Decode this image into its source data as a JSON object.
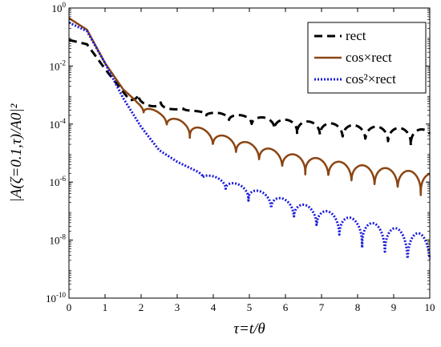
{
  "chart_data": {
    "type": "line",
    "title": "",
    "xlabel": "τ=t/θ",
    "ylabel": "|A(ζ=0.1,τ)/A0|²",
    "xlim": [
      0,
      10
    ],
    "ylim_log10": [
      -10,
      0
    ],
    "y_scale": "log",
    "x_ticks": [
      "0",
      "1",
      "2",
      "3",
      "4",
      "5",
      "6",
      "7",
      "8",
      "9",
      "10"
    ],
    "y_ticks": [
      "10-10",
      "10-8",
      "10-6",
      "10-4",
      "10-2",
      "100"
    ],
    "grid": false,
    "legend_position": "top-right",
    "series": [
      {
        "name": "rect",
        "color": "#000000",
        "style": "dashed",
        "floor_log10": [
          [
            0.0,
            -1.1
          ],
          [
            0.5,
            -1.25
          ],
          [
            1.0,
            -2.0
          ],
          [
            2.0,
            -3.0
          ],
          [
            4.0,
            -3.8
          ],
          [
            6.0,
            -4.3
          ],
          [
            8.0,
            -4.6
          ],
          [
            10.0,
            -4.8
          ]
        ],
        "peak_log10": [
          [
            0.0,
            -1.1
          ],
          [
            0.5,
            -1.25
          ],
          [
            1.0,
            -2.1
          ],
          [
            1.7,
            -3.2
          ],
          [
            2.5,
            -3.45
          ],
          [
            4.0,
            -3.6
          ],
          [
            6.0,
            -3.85
          ],
          [
            8.0,
            -4.05
          ],
          [
            10.0,
            -4.2
          ]
        ],
        "oscillation_start": 1.6,
        "oscillation_period": 0.63
      },
      {
        "name": "cos×rect",
        "color": "#8b4513",
        "style": "solid",
        "floor_log10": [
          [
            0.0,
            -0.35
          ],
          [
            0.5,
            -0.75
          ],
          [
            1.0,
            -1.9
          ],
          [
            1.5,
            -2.8
          ],
          [
            2.0,
            -3.6
          ],
          [
            3.0,
            -4.3
          ],
          [
            4.0,
            -4.8
          ],
          [
            6.0,
            -5.6
          ],
          [
            8.0,
            -6.1
          ],
          [
            10.0,
            -6.5
          ]
        ],
        "peak_log10": [
          [
            0.0,
            -0.35
          ],
          [
            0.5,
            -0.75
          ],
          [
            1.0,
            -1.9
          ],
          [
            1.5,
            -2.8
          ],
          [
            1.9,
            -3.25
          ],
          [
            2.5,
            -3.6
          ],
          [
            4.0,
            -4.3
          ],
          [
            6.0,
            -5.0
          ],
          [
            8.0,
            -5.4
          ],
          [
            10.0,
            -5.7
          ]
        ],
        "oscillation_start": 1.75,
        "oscillation_period": 0.64
      },
      {
        "name": "cos²×rect",
        "color": "#1a1adc",
        "style": "dotted",
        "floor_log10": [
          [
            0.0,
            -0.5
          ],
          [
            0.5,
            -0.8
          ],
          [
            1.0,
            -1.9
          ],
          [
            1.5,
            -3.1
          ],
          [
            2.0,
            -4.1
          ],
          [
            2.5,
            -4.9
          ],
          [
            3.0,
            -5.3
          ],
          [
            4.0,
            -6.1
          ],
          [
            6.0,
            -7.2
          ],
          [
            8.0,
            -8.2
          ],
          [
            10.0,
            -9.2
          ]
        ],
        "peak_log10": [
          [
            0.0,
            -0.5
          ],
          [
            0.5,
            -0.8
          ],
          [
            1.0,
            -1.9
          ],
          [
            1.5,
            -3.1
          ],
          [
            2.0,
            -4.1
          ],
          [
            2.5,
            -4.9
          ],
          [
            3.0,
            -5.3
          ],
          [
            3.5,
            -5.6
          ],
          [
            4.0,
            -5.8
          ],
          [
            6.0,
            -6.6
          ],
          [
            8.0,
            -7.3
          ],
          [
            10.0,
            -7.85
          ]
        ],
        "oscillation_start": 3.4,
        "oscillation_period": 0.63
      }
    ]
  }
}
